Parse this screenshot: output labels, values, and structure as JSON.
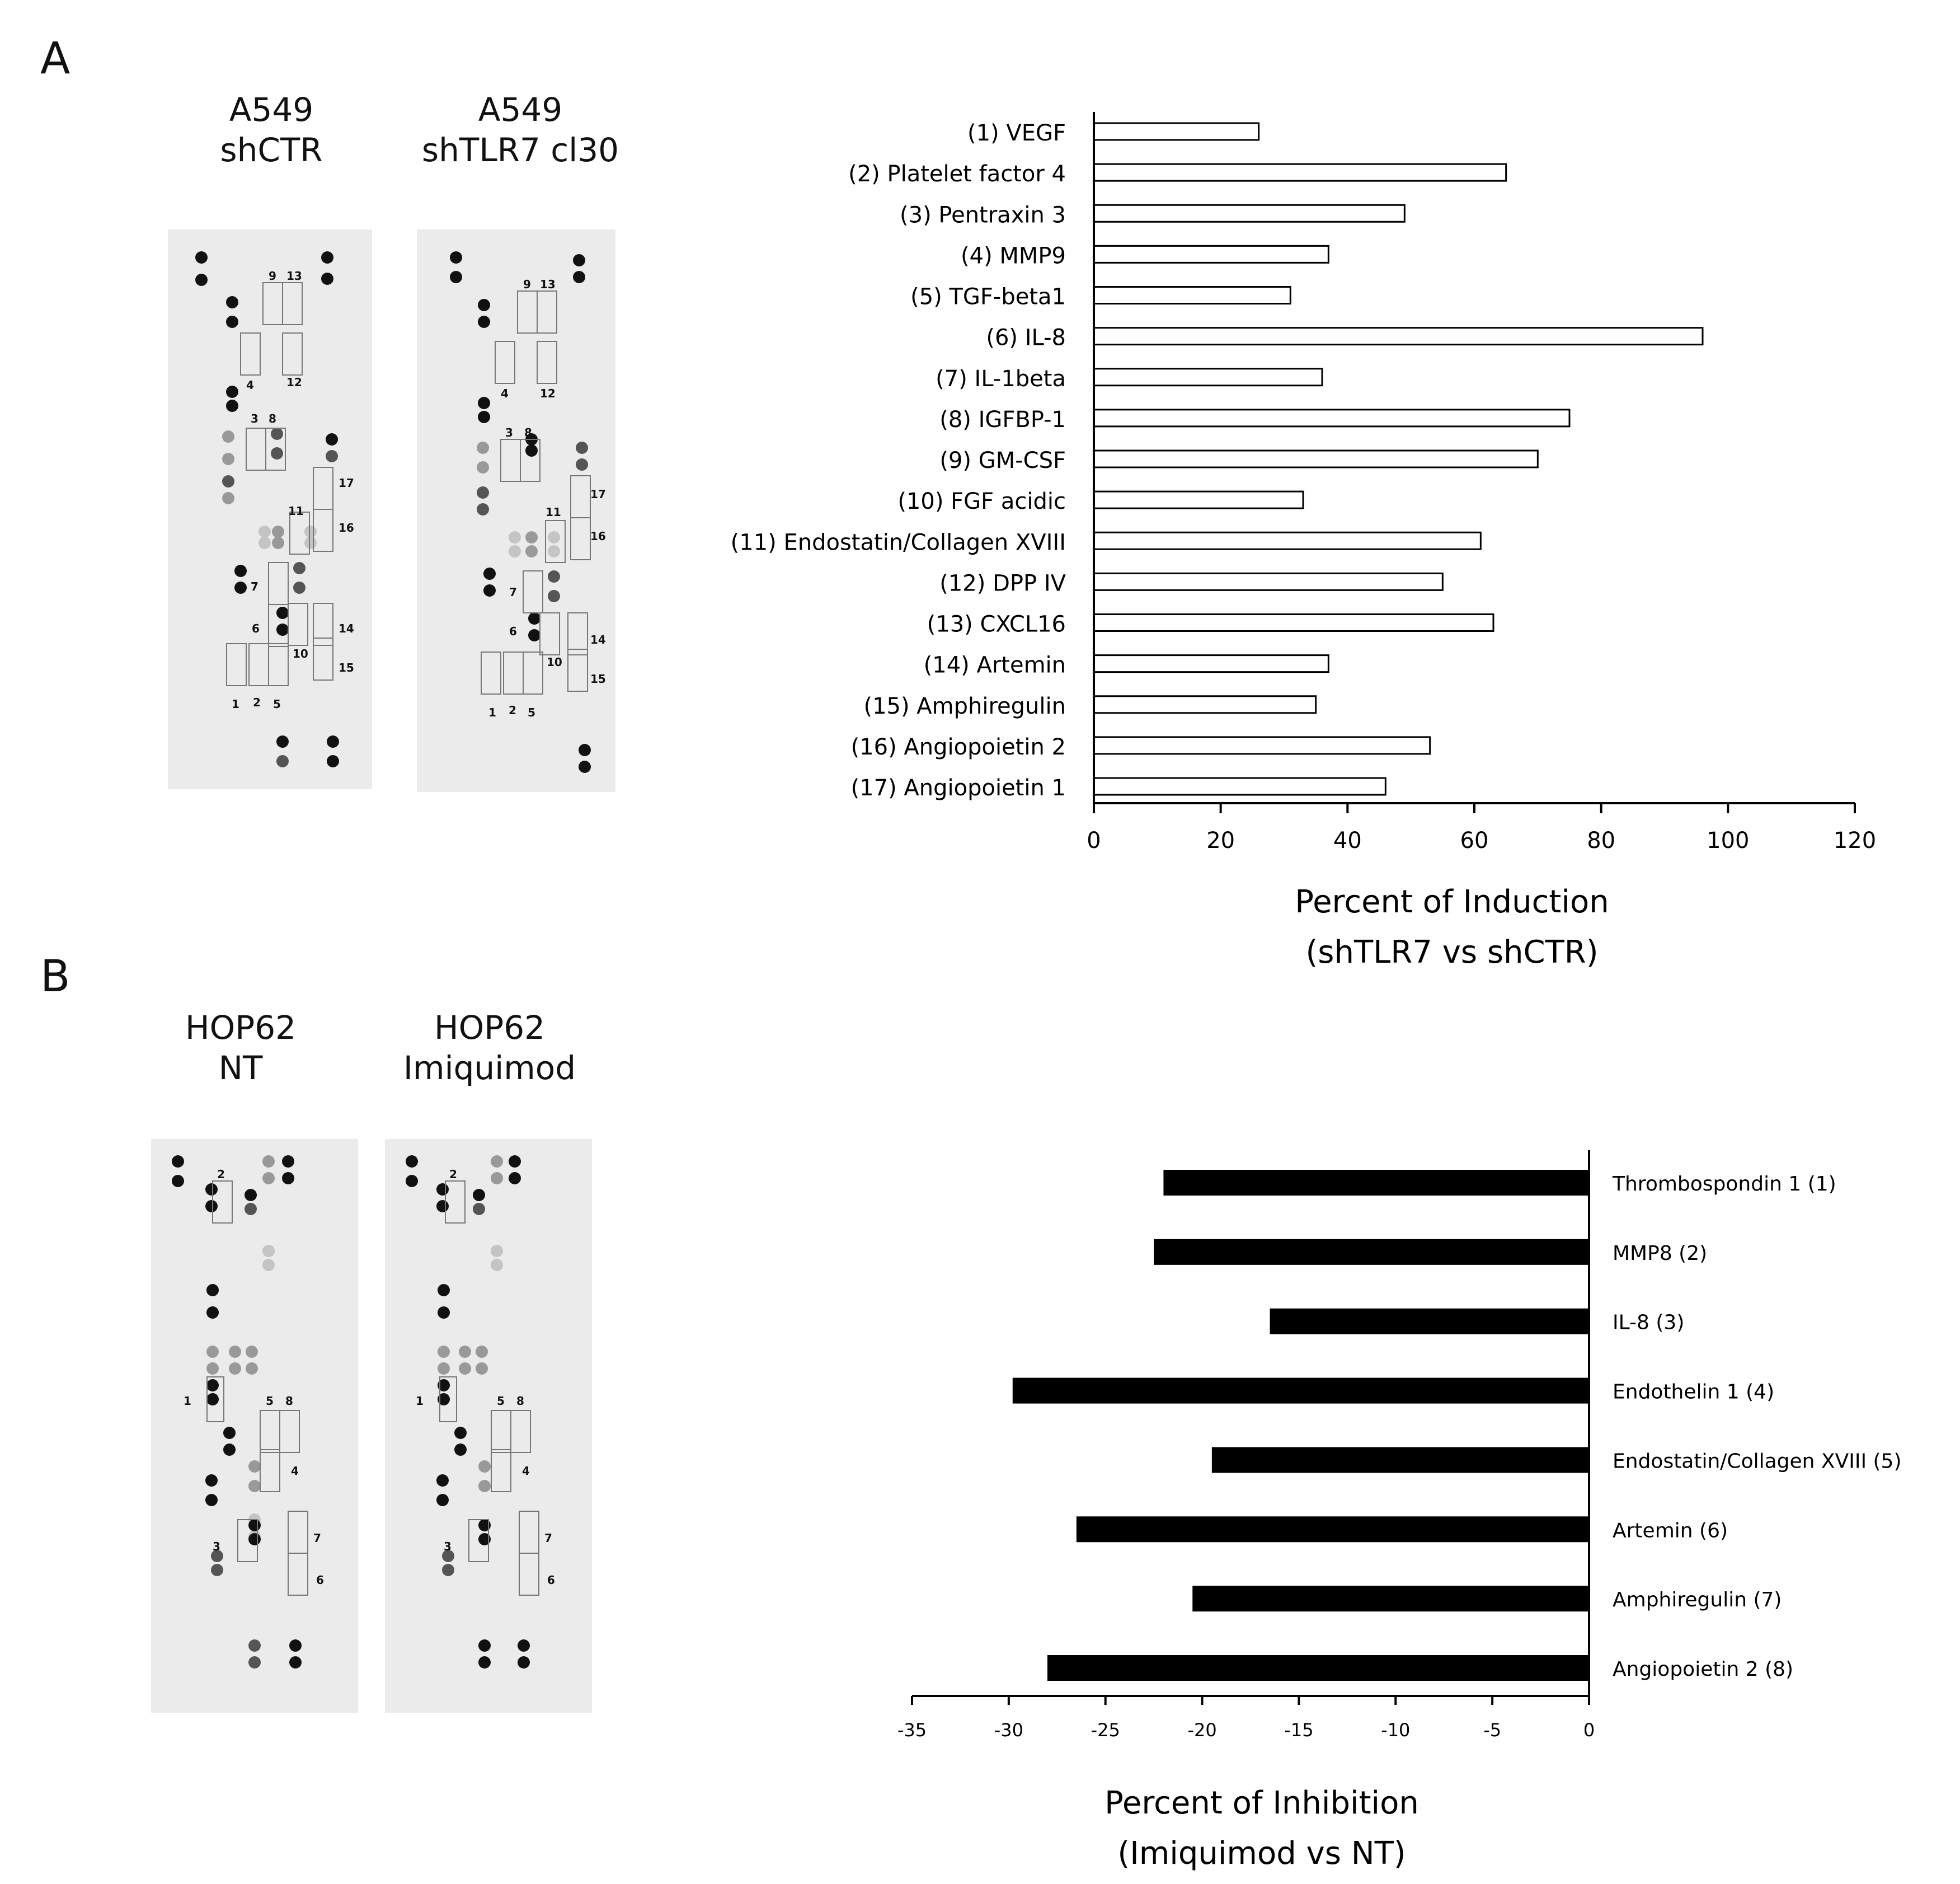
{
  "panels": {
    "A": {
      "letter": "A",
      "blots": [
        {
          "line1": "A549",
          "line2": "shCTR"
        },
        {
          "line1": "A549",
          "line2": "shTLR7 cl30"
        }
      ],
      "blot_box_labels": [
        [
          "9",
          "13",
          "4",
          "12",
          "3",
          "8",
          "17",
          "11",
          "16",
          "7",
          "6",
          "14",
          "10",
          "15",
          "1",
          "2",
          "5"
        ],
        [
          "9",
          "13",
          "4",
          "12",
          "3",
          "8",
          "17",
          "11",
          "16",
          "7",
          "6",
          "14",
          "10",
          "15",
          "1",
          "2",
          "5"
        ]
      ]
    },
    "B": {
      "letter": "B",
      "blots": [
        {
          "line1": "HOP62",
          "line2": "NT"
        },
        {
          "line1": "HOP62",
          "line2": "Imiquimod"
        }
      ],
      "blot_box_labels": [
        [
          "2",
          "1",
          "5",
          "8",
          "4",
          "3",
          "7",
          "6"
        ],
        [
          "2",
          "1",
          "5",
          "8",
          "4",
          "3",
          "7",
          "6"
        ]
      ]
    }
  },
  "colors": {
    "barA": "#ffffff",
    "barB": "#000000",
    "axis": "#000000",
    "blotBg": "#ebebeb"
  },
  "chart_data": [
    {
      "type": "bar",
      "orientation": "horizontal",
      "categories": [
        "(1) VEGF",
        "(2) Platelet factor 4",
        "(3) Pentraxin 3",
        "(4) MMP9",
        "(5) TGF-beta1",
        "(6) IL-8",
        "(7) IL-1beta",
        "(8) IGFBP-1",
        "(9) GM-CSF",
        "(10) FGF acidic",
        "(11) Endostatin/Collagen XVIII",
        "(12) DPP IV",
        "(13) CXCL16",
        "(14) Artemin",
        "(15) Amphiregulin",
        "(16) Angiopoietin 2",
        "(17) Angiopoietin 1"
      ],
      "values": [
        26,
        65,
        49,
        37,
        31,
        96,
        36,
        75,
        70,
        33,
        61,
        55,
        63,
        37,
        35,
        53,
        46
      ],
      "xlabel_line1": "Percent of Induction",
      "xlabel_line2": "(shTLR7 vs shCTR)",
      "xlim": [
        0,
        120
      ],
      "xticks": [
        "0",
        "20",
        "40",
        "60",
        "80",
        "100",
        "120"
      ]
    },
    {
      "type": "bar",
      "orientation": "horizontal",
      "categories": [
        "Thrombospondin 1 (1)",
        "MMP8 (2)",
        "IL-8 (3)",
        "Endothelin 1 (4)",
        "Endostatin/Collagen XVIII (5)",
        "Artemin (6)",
        "Amphiregulin (7)",
        "Angiopoietin 2 (8)"
      ],
      "values": [
        -22,
        -22.5,
        -16.5,
        -29.8,
        -19.5,
        -26.5,
        -20.5,
        -28
      ],
      "xlabel_line1": "Percent of Inhibition",
      "xlabel_line2": "(Imiquimod vs NT)",
      "xlim": [
        -35,
        0
      ],
      "xticks": [
        "-35",
        "-30",
        "-25",
        "-20",
        "-15",
        "-10",
        "-5",
        "0"
      ]
    }
  ]
}
